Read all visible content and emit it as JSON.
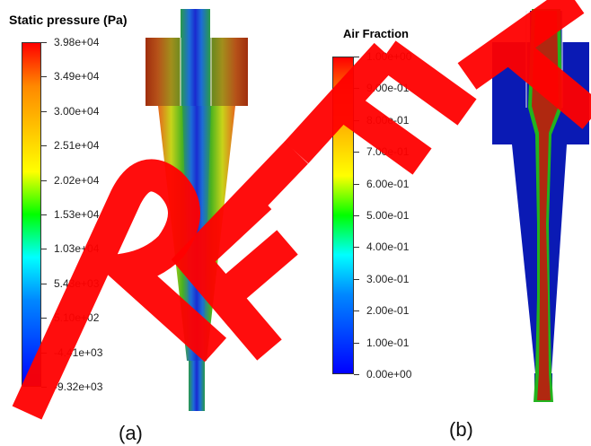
{
  "panel_a": {
    "label": "(a)",
    "colorbar": {
      "title": "Static pressure (Pa)",
      "ticks": [
        "3.98e+04",
        "3.49e+04",
        "3.00e+04",
        "2.51e+04",
        "2.02e+04",
        "1.53e+04",
        "1.03e+04",
        "5.43e+03",
        "5.10e+02",
        "-4.41e+03",
        "-9.32e+03"
      ]
    }
  },
  "panel_b": {
    "label": "(b)",
    "colorbar": {
      "title": "Air Fraction",
      "ticks": [
        "1.00e+00",
        "9.00e-01",
        "8.00e-01",
        "7.00e-01",
        "6.00e-01",
        "5.00e-01",
        "4.00e-01",
        "3.00e-01",
        "2.00e-01",
        "1.00e-01",
        "0.00e+00"
      ]
    }
  },
  "watermark": {
    "text": "REFT",
    "color": "#ff0000"
  }
}
